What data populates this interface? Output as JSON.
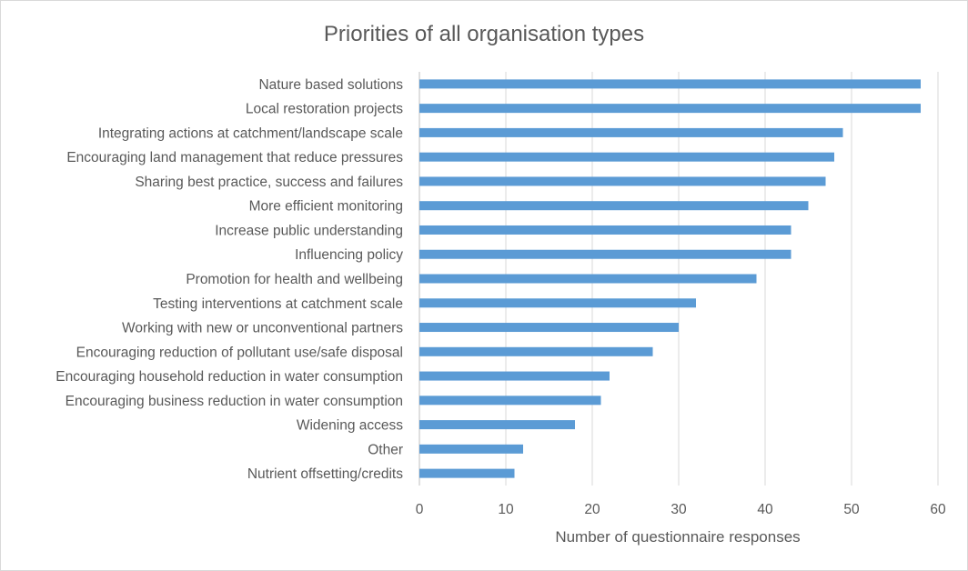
{
  "chart_data": {
    "type": "bar",
    "orientation": "horizontal",
    "title": "Priorities of all organisation types",
    "xlabel": "Number of questionnaire responses",
    "ylabel": "",
    "xlim": [
      0,
      60
    ],
    "xticks": [
      0,
      10,
      20,
      30,
      40,
      50,
      60
    ],
    "grid": "vertical",
    "legend": "none",
    "bar_color": "#5b9bd5",
    "categories": [
      "Nature based solutions",
      "Local restoration projects",
      "Integrating actions at catchment/landscape scale",
      "Encouraging land management that reduce pressures",
      "Sharing best practice, success and failures",
      "More efficient monitoring",
      "Increase public understanding",
      "Influencing policy",
      "Promotion for health and wellbeing",
      "Testing interventions at catchment scale",
      "Working with new or unconventional partners",
      "Encouraging reduction of pollutant use/safe disposal",
      "Encouraging household reduction in water consumption",
      "Encouraging business reduction in water consumption",
      "Widening access",
      "Other",
      "Nutrient offsetting/credits"
    ],
    "values": [
      58,
      58,
      49,
      48,
      47,
      45,
      43,
      43,
      39,
      32,
      30,
      27,
      22,
      21,
      18,
      12,
      11
    ]
  }
}
